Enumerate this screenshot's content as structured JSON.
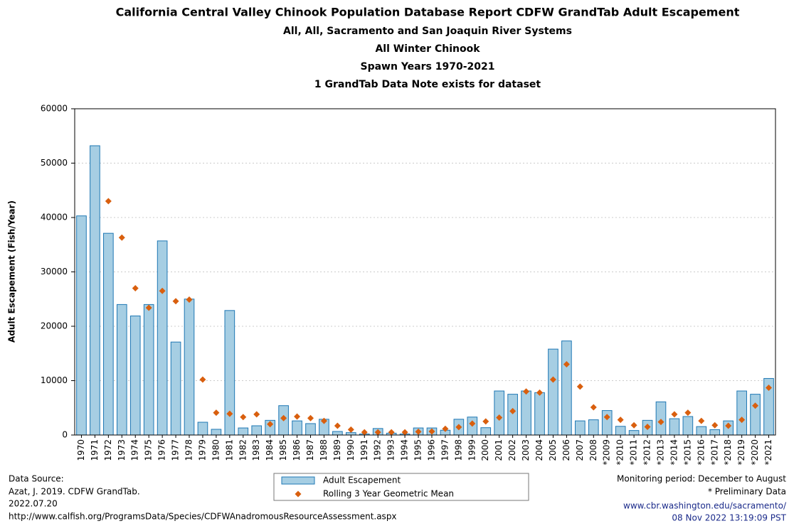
{
  "chart_data": {
    "type": "bar",
    "title": "California Central Valley Chinook Population Database Report CDFW GrandTab Adult Escapement",
    "subtitles": [
      "All, All, Sacramento and San Joaquin River Systems",
      "All Winter Chinook",
      "Spawn Years 1970-2021",
      "1 GrandTab Data Note exists for dataset"
    ],
    "y_label": "Adult Escapement (Fish/Year)",
    "categories": [
      "1970",
      "1971",
      "1972",
      "1973",
      "1974",
      "1975",
      "1976",
      "1977",
      "1978",
      "1979",
      "1980",
      "1981",
      "1982",
      "1983",
      "1984",
      "1985",
      "1986",
      "1987",
      "1988",
      "1989",
      "1990",
      "1991",
      "1992",
      "1993",
      "1994",
      "1995",
      "1996",
      "1997",
      "1998",
      "1999",
      "2000",
      "2001",
      "2002",
      "2003",
      "2004",
      "2005",
      "2006",
      "2007",
      "2008",
      "*2009",
      "*2010",
      "*2011",
      "*2012",
      "*2013",
      "*2014",
      "*2015",
      "*2016",
      "*2017",
      "*2018",
      "*2019",
      "*2020",
      "*2021"
    ],
    "series": [
      {
        "name": "Adult Escapement",
        "type": "bar",
        "color": "#a6cee3",
        "values": [
          40300,
          53200,
          37100,
          24000,
          21900,
          24000,
          35700,
          17100,
          25000,
          2350,
          1050,
          22900,
          1300,
          1700,
          2700,
          5400,
          2600,
          2100,
          2900,
          650,
          440,
          190,
          1200,
          340,
          190,
          1300,
          1300,
          880,
          2900,
          3300,
          1350,
          8100,
          7500,
          8100,
          7800,
          15800,
          17300,
          2600,
          2800,
          4500,
          1600,
          830,
          2700,
          6100,
          3000,
          3400,
          1550,
          980,
          2600,
          8100,
          7500,
          10400
        ]
      },
      {
        "name": "Rolling 3 Year Geometric Mean",
        "type": "scatter",
        "color": "#d95f0e",
        "values": [
          null,
          null,
          43000,
          36300,
          27000,
          23400,
          26500,
          24600,
          24900,
          10200,
          4100,
          3900,
          3300,
          3800,
          2000,
          3100,
          3400,
          3100,
          2600,
          1700,
          1000,
          500,
          500,
          500,
          500,
          600,
          650,
          1150,
          1450,
          2100,
          2500,
          3200,
          4400,
          8000,
          7800,
          10200,
          13000,
          8900,
          5100,
          3300,
          2800,
          1800,
          1500,
          2400,
          3800,
          4100,
          2600,
          1800,
          1700,
          2800,
          5400,
          8700
        ]
      }
    ],
    "ylim": [
      0,
      60000
    ],
    "yticks": [
      0,
      10000,
      20000,
      30000,
      40000,
      50000,
      60000
    ],
    "grid": true,
    "notes_left": [
      "Data Source:",
      "Azat, J. 2019. CDFW GrandTab.",
      "2022.07.20",
      "http://www.calfish.org/ProgramsData/Species/CDFWAnadromousResourceAssessment.aspx"
    ],
    "notes_right": [
      "Monitoring period: December to August",
      "* Preliminary Data",
      "www.cbr.washington.edu/sacramento/",
      "08 Nov 2022 13:19:09 PST"
    ]
  }
}
